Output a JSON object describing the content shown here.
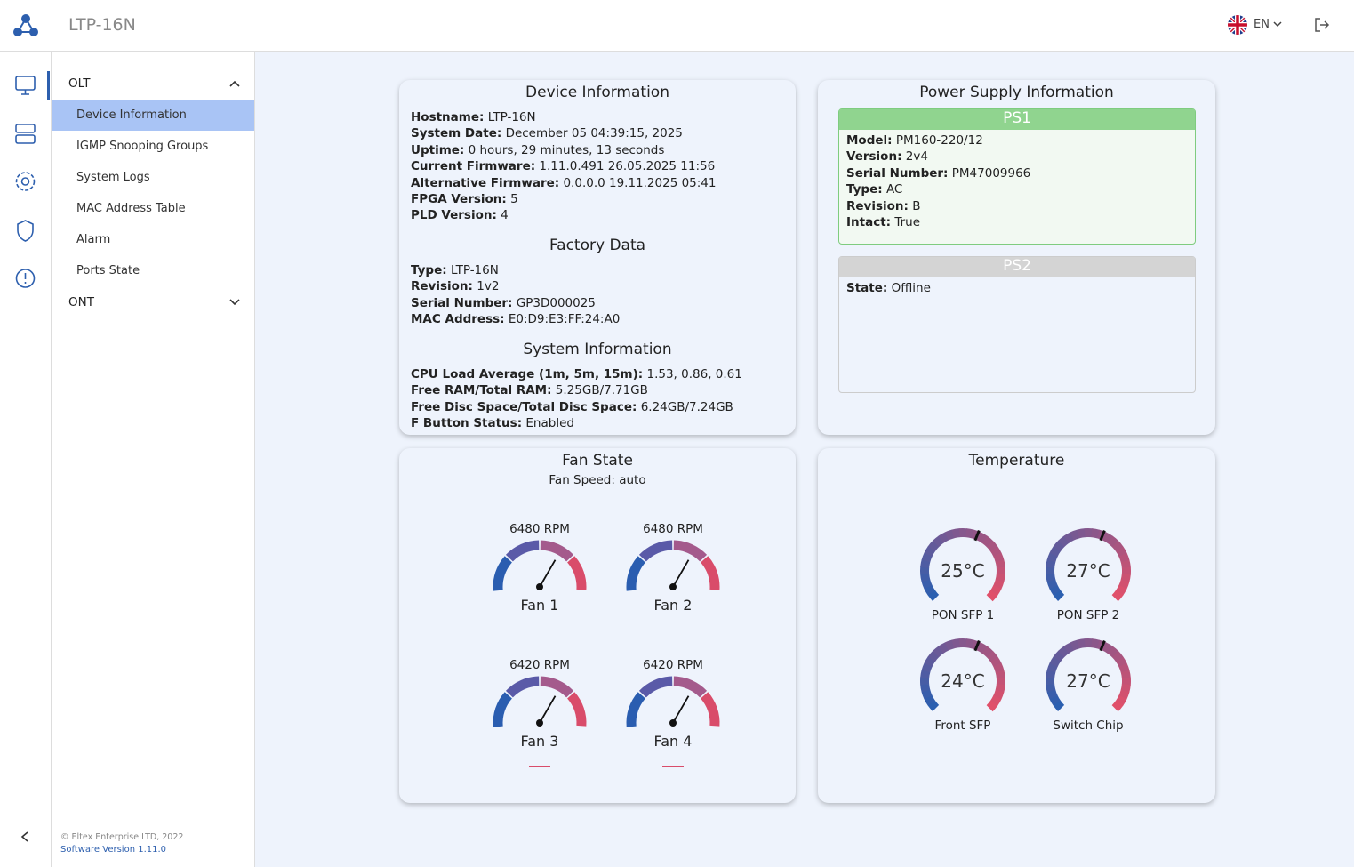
{
  "header": {
    "title": "LTP-16N",
    "language": "EN"
  },
  "sidebar": {
    "groups": [
      {
        "label": "OLT",
        "items": [
          "Device Information",
          "IGMP Snooping Groups",
          "System Logs",
          "MAC Address Table",
          "Alarm",
          "Ports State"
        ]
      },
      {
        "label": "ONT",
        "items": []
      }
    ],
    "copyright": "© Eltex Enterprise LTD, 2022",
    "version": "Software Version 1.11.0"
  },
  "device": {
    "title": "Device Information",
    "fields": [
      [
        "Hostname:",
        "LTP-16N"
      ],
      [
        "System Date:",
        "December 05 04:39:15, 2025"
      ],
      [
        "Uptime:",
        "0 hours, 29 minutes, 13 seconds"
      ],
      [
        "Current Firmware:",
        "1.11.0.491 26.05.2025 11:56"
      ],
      [
        "Alternative Firmware:",
        "0.0.0.0 19.11.2025 05:41"
      ],
      [
        "FPGA Version:",
        "5"
      ],
      [
        "PLD Version:",
        "4"
      ]
    ],
    "factory_title": "Factory Data",
    "factory": [
      [
        "Type:",
        "LTP-16N"
      ],
      [
        "Revision:",
        "1v2"
      ],
      [
        "Serial Number:",
        "GP3D000025"
      ],
      [
        "MAC Address:",
        "E0:D9:E3:FF:24:A0"
      ]
    ],
    "system_title": "System Information",
    "system": [
      [
        "CPU Load Average (1m, 5m, 15m):",
        "1.53, 0.86, 0.61"
      ],
      [
        "Free RAM/Total RAM:",
        "5.25GB/7.71GB"
      ],
      [
        "Free Disc Space/Total Disc Space:",
        "6.24GB/7.24GB"
      ],
      [
        "F Button Status:",
        "Enabled"
      ]
    ]
  },
  "power": {
    "title": "Power Supply Information",
    "supplies": [
      {
        "name": "PS1",
        "fields": [
          [
            "Model:",
            "PM160-220/12"
          ],
          [
            "Version:",
            "2v4"
          ],
          [
            "Serial Number:",
            "PM47009966"
          ],
          [
            "Type:",
            "AC"
          ],
          [
            "Revision:",
            "B"
          ],
          [
            "Intact:",
            "True"
          ]
        ]
      },
      {
        "name": "PS2",
        "fields": [
          [
            "State:",
            "Offline"
          ]
        ]
      }
    ]
  },
  "fans": {
    "title": "Fan State",
    "speed": "Fan Speed: auto",
    "items": [
      {
        "rpm": "6480 RPM",
        "label": "Fan 1"
      },
      {
        "rpm": "6480 RPM",
        "label": "Fan 2"
      },
      {
        "rpm": "6420 RPM",
        "label": "Fan 3"
      },
      {
        "rpm": "6420 RPM",
        "label": "Fan 4"
      }
    ]
  },
  "temperature": {
    "title": "Temperature",
    "items": [
      {
        "value": "25°C",
        "label": "PON SFP 1"
      },
      {
        "value": "27°C",
        "label": "PON SFP 2"
      },
      {
        "value": "24°C",
        "label": "Front SFP"
      },
      {
        "value": "27°C",
        "label": "Switch Chip"
      }
    ]
  }
}
